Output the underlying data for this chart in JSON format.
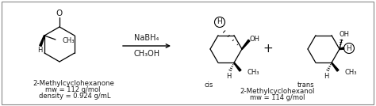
{
  "bg_color": "#ffffff",
  "border_color": "#888888",
  "reactant_name": "2-Methylcyclohexanone",
  "reactant_mw": "mw = 112 g/mol",
  "reactant_density": "density = 0.924 g/mL",
  "reagent_line1": "NaBH₄",
  "reagent_line2": "CH₃OH",
  "product_name": "2-Methylcyclohexanol",
  "product_mw": "mw = 114 g/mol",
  "cis_label": "cis",
  "trans_label": "trans",
  "font_size_name": 6.2,
  "font_size_mw": 6.0,
  "font_size_reagent": 7.0,
  "font_size_stereo": 6.0,
  "font_size_atom": 7.5,
  "structure_color": "#000000",
  "text_color": "#1a1a1a"
}
